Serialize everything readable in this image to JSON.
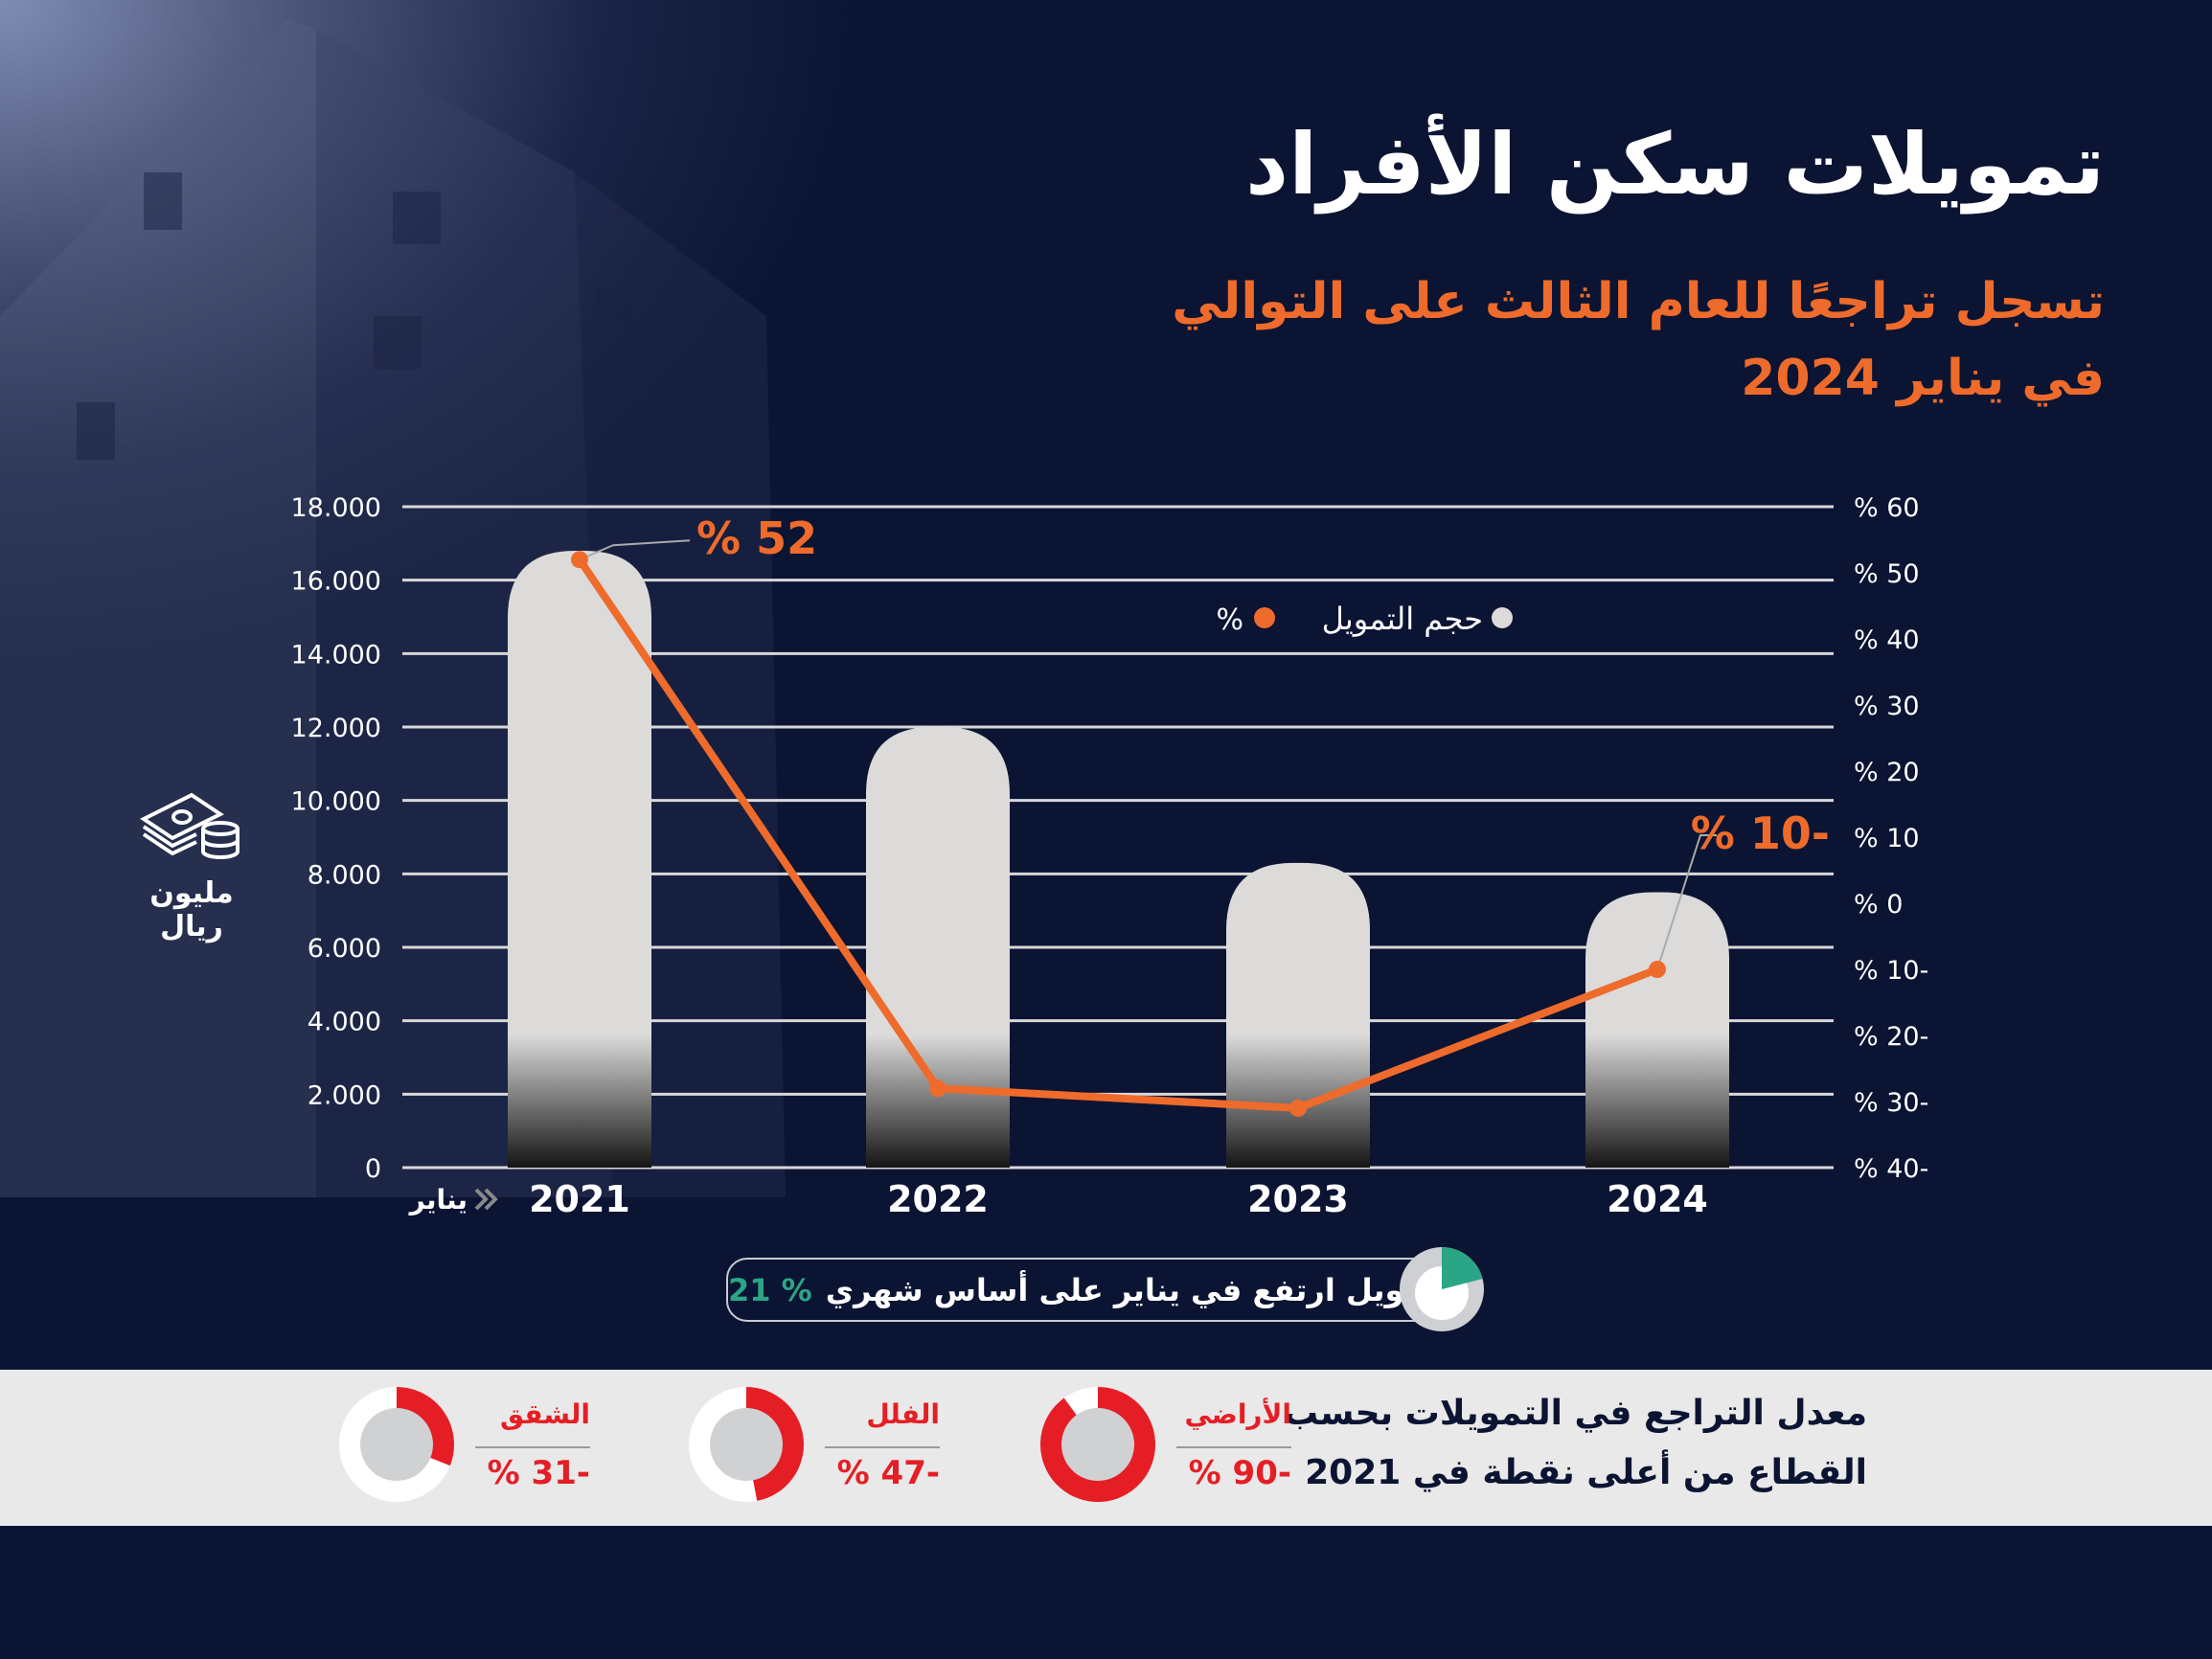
{
  "header": {
    "title": "تمويلات سكن الأفراد",
    "subtitle_line1": "تسجل تراجعًا للعام الثالث على التوالي",
    "subtitle_line2": "في يناير 2024"
  },
  "unit": {
    "label": "مليون ريال",
    "icon": "money-stack-icon"
  },
  "x_axis_prefix": "يناير",
  "chart_data": {
    "type": "bar+line",
    "categories": [
      "2021",
      "2022",
      "2023",
      "2024"
    ],
    "series": [
      {
        "name": "حجم التمويل",
        "type": "bar",
        "axis": "left",
        "values": [
          16800,
          12000,
          8300,
          7500
        ],
        "color": "#dcdbda"
      },
      {
        "name": "%",
        "type": "line",
        "axis": "right",
        "values": [
          52,
          -28,
          -31,
          -10
        ],
        "color": "#ee6b2b"
      }
    ],
    "left_axis": {
      "ylim": [
        0,
        18000
      ],
      "ticks": [
        "0",
        "2.000",
        "4.000",
        "6.000",
        "8.000",
        "10.000",
        "12.000",
        "14.000",
        "16.000",
        "18.000"
      ]
    },
    "right_axis": {
      "ylim": [
        -40,
        60
      ],
      "ticks": [
        "% 40-",
        "% 30-",
        "% 20-",
        "% 10-",
        "% 0",
        "% 10",
        "% 20",
        "% 30",
        "% 40",
        "% 50",
        "% 60"
      ]
    },
    "annotations": [
      {
        "category": "2021",
        "text": "% 52"
      },
      {
        "category": "2024",
        "text": "% 10-"
      }
    ],
    "legend": {
      "items": [
        "حجم التمويل",
        "%"
      ],
      "placement": "top-right"
    },
    "grid": true
  },
  "callout": {
    "text": "التمويل ارتفع في يناير على أساس شهري",
    "value": "% 21",
    "fraction": 0.21,
    "color": "#2aa585"
  },
  "sectors": {
    "title_line1": "معدل التراجع في التمويلات بحسب",
    "title_line2": "القطاع من أعلى نقطة في 2021",
    "items": [
      {
        "name": "الأراضي",
        "value": "% 90-",
        "fraction": 0.9
      },
      {
        "name": "الفلل",
        "value": "% 47-",
        "fraction": 0.47
      },
      {
        "name": "الشقق",
        "value": "% 31-",
        "fraction": 0.31
      }
    ],
    "color": "#e51e25"
  }
}
